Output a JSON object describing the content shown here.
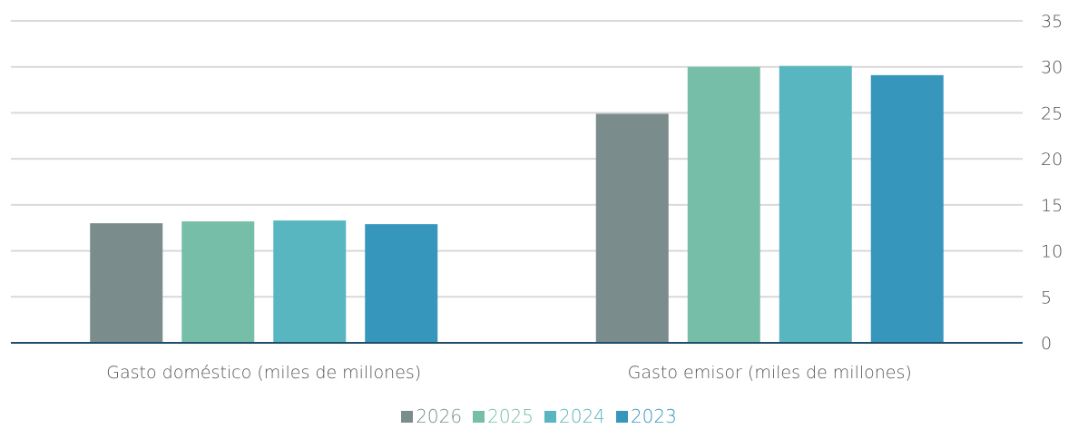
{
  "chart_data": {
    "type": "bar",
    "title": "",
    "xlabel": "",
    "ylabel": "",
    "categories": [
      "Gasto doméstico (miles de millones)",
      "Gasto emisor (miles de millones)"
    ],
    "series": [
      {
        "name": "2026",
        "color": "#7b8c8c",
        "values": [
          13.0,
          24.9
        ]
      },
      {
        "name": "2025",
        "color": "#76bea7",
        "values": [
          13.2,
          30.0
        ]
      },
      {
        "name": "2024",
        "color": "#58b6c0",
        "values": [
          13.3,
          30.1
        ]
      },
      {
        "name": "2023",
        "color": "#3696bc",
        "values": [
          12.9,
          29.1
        ]
      }
    ],
    "ylim": [
      0,
      35
    ],
    "yticks": [
      0,
      5,
      10,
      15,
      20,
      25,
      30,
      35
    ],
    "y_axis_side": "right",
    "grid": true,
    "legend_position": "bottom",
    "axis_color": "#1f4e6b",
    "grid_color": "#d9d9d9"
  }
}
